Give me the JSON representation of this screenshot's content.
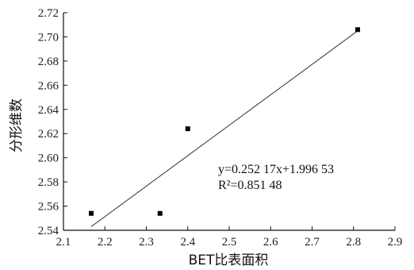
{
  "chart_data": {
    "type": "scatter",
    "xlabel": "BET比表面积",
    "ylabel": "分形维数",
    "xlim": [
      2.1,
      2.9
    ],
    "ylim": [
      2.54,
      2.72
    ],
    "x_ticks": [
      "2.1",
      "2.2",
      "2.3",
      "2.4",
      "2.5",
      "2.6",
      "2.7",
      "2.8",
      "2.9"
    ],
    "y_ticks": [
      "2.54",
      "2.56",
      "2.58",
      "2.60",
      "2.62",
      "2.64",
      "2.66",
      "2.68",
      "2.70",
      "2.72"
    ],
    "points": [
      {
        "x": 2.167,
        "y": 2.554
      },
      {
        "x": 2.333,
        "y": 2.554
      },
      {
        "x": 2.4,
        "y": 2.624
      },
      {
        "x": 2.81,
        "y": 2.706
      }
    ],
    "fit_line": {
      "x": [
        2.167,
        2.81
      ],
      "y": [
        2.543,
        2.705
      ]
    },
    "equation_line1": "y=0.252 17x+1.996 53",
    "equation_line2": "R²=0.851 48",
    "grid": false,
    "legend": "none"
  }
}
